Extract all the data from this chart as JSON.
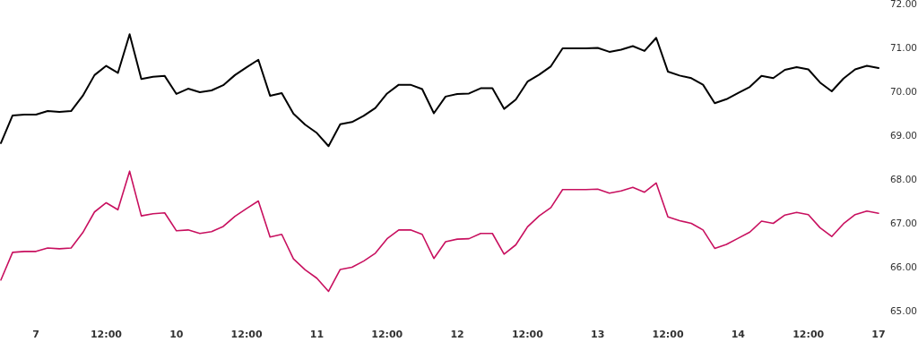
{
  "chart_data": {
    "type": "line",
    "categories": [
      null,
      null,
      null,
      "7",
      null,
      null,
      null,
      null,
      null,
      "12:00",
      null,
      null,
      null,
      null,
      null,
      "10",
      null,
      null,
      null,
      null,
      null,
      "12:00",
      null,
      null,
      null,
      null,
      null,
      "11",
      null,
      null,
      null,
      null,
      null,
      "12:00",
      null,
      null,
      null,
      null,
      null,
      "12",
      null,
      null,
      null,
      null,
      null,
      "12:00",
      null,
      null,
      null,
      null,
      null,
      "13",
      null,
      null,
      null,
      null,
      null,
      "12:00",
      null,
      null,
      null,
      null,
      null,
      "14",
      null,
      null,
      null,
      null,
      null,
      "12:00",
      null,
      null,
      null,
      null,
      null,
      "17"
    ],
    "series": [
      {
        "color": "#000000",
        "values": [
          68.82,
          69.45,
          69.47,
          69.47,
          69.55,
          69.53,
          69.55,
          69.9,
          70.37,
          70.58,
          70.42,
          71.3,
          70.28,
          70.33,
          70.35,
          69.94,
          70.06,
          69.98,
          70.02,
          70.14,
          70.37,
          70.55,
          70.72,
          69.9,
          69.96,
          69.49,
          69.24,
          69.05,
          68.75,
          69.25,
          69.3,
          69.44,
          69.62,
          69.95,
          70.15,
          70.15,
          70.05,
          69.5,
          69.88,
          69.94,
          69.95,
          70.07,
          70.07,
          69.6,
          69.81,
          70.22,
          70.38,
          70.57,
          70.98,
          70.98,
          70.98,
          70.99,
          70.9,
          70.95,
          71.03,
          70.92,
          71.22,
          70.45,
          70.36,
          70.3,
          70.15,
          69.73,
          69.82,
          69.96,
          70.1,
          70.35,
          70.3,
          70.49,
          70.55,
          70.5,
          70.2,
          70.0,
          70.29,
          70.5,
          70.58,
          70.53
        ]
      },
      {
        "color": "#c8105f",
        "values": [
          65.7,
          66.33,
          66.35,
          66.35,
          66.43,
          66.41,
          66.43,
          66.78,
          67.25,
          67.46,
          67.3,
          68.18,
          67.16,
          67.21,
          67.23,
          66.82,
          66.84,
          66.76,
          66.8,
          66.92,
          67.15,
          67.33,
          67.5,
          66.68,
          66.74,
          66.18,
          65.93,
          65.74,
          65.44,
          65.94,
          65.99,
          66.13,
          66.31,
          66.64,
          66.84,
          66.84,
          66.74,
          66.19,
          66.57,
          66.63,
          66.64,
          66.76,
          66.76,
          66.29,
          66.5,
          66.91,
          67.16,
          67.35,
          67.76,
          67.76,
          67.76,
          67.77,
          67.68,
          67.73,
          67.81,
          67.7,
          67.91,
          67.14,
          67.05,
          66.99,
          66.84,
          66.42,
          66.51,
          66.65,
          66.79,
          67.04,
          66.99,
          67.18,
          67.24,
          67.19,
          66.89,
          66.69,
          66.98,
          67.19,
          67.27,
          67.22
        ]
      }
    ],
    "ylim": [
      65,
      72
    ],
    "yticks": [
      {
        "value": 65,
        "label": "65.00"
      },
      {
        "value": 66,
        "label": "66.00"
      },
      {
        "value": 67,
        "label": "67.00"
      },
      {
        "value": 68,
        "label": "68.00"
      },
      {
        "value": 69,
        "label": "69.00"
      },
      {
        "value": 70,
        "label": "70.00"
      },
      {
        "value": 71,
        "label": "71.00"
      },
      {
        "value": 72,
        "label": "72.00"
      }
    ]
  }
}
